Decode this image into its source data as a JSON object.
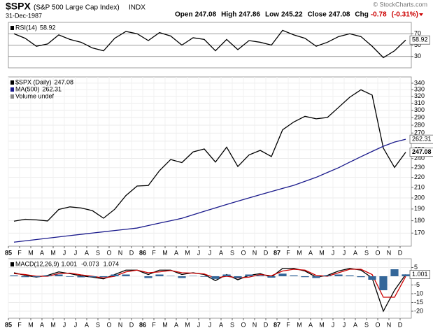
{
  "header": {
    "symbol": "$SPX",
    "name": "(S&P 500 Large Cap Index)",
    "exchange": "INDX",
    "date": "31-Dec-1987",
    "open_label": "Open",
    "open": 247.08,
    "high_label": "High",
    "high": 247.86,
    "low_label": "Low",
    "low": 245.22,
    "close_label": "Close",
    "close": 247.08,
    "chg_label": "Chg",
    "chg": -0.78,
    "chg_pct": "(-0.31%)",
    "credit": "© StockCharts.com"
  },
  "chart_data": [
    {
      "type": "line",
      "ylim": [
        10,
        90
      ],
      "yticks": [
        30,
        50,
        70
      ],
      "grid": true,
      "series": [
        {
          "name": "RSI(14)",
          "color": "#000000",
          "value_box": true,
          "values": [
            70,
            62,
            48,
            52,
            68,
            60,
            55,
            45,
            40,
            62,
            74,
            70,
            58,
            72,
            66,
            50,
            63,
            60,
            40,
            60,
            42,
            58,
            55,
            50,
            76,
            68,
            62,
            48,
            55,
            65,
            70,
            65,
            48,
            28,
            40,
            58.92
          ]
        }
      ]
    },
    {
      "type": "line",
      "log_scale": true,
      "ylim": [
        160,
        350
      ],
      "yticks": [
        170,
        180,
        190,
        200,
        210,
        220,
        230,
        240,
        250,
        260,
        270,
        280,
        290,
        300,
        310,
        320,
        330,
        340
      ],
      "grid": true,
      "categories": [
        "85",
        "F",
        "M",
        "A",
        "M",
        "J",
        "J",
        "A",
        "S",
        "O",
        "N",
        "D",
        "86",
        "F",
        "M",
        "A",
        "M",
        "J",
        "J",
        "A",
        "S",
        "O",
        "N",
        "D",
        "87",
        "F",
        "M",
        "A",
        "M",
        "J",
        "J",
        "A",
        "S",
        "O",
        "N",
        "D"
      ],
      "volume_legend": "Volume undef",
      "series": [
        {
          "name": "$SPX (Daily)",
          "color": "#000000",
          "value_box": true,
          "values": [
            179.6,
            181.2,
            180.7,
            179.8,
            189.6,
            191.9,
            190.9,
            188.6,
            182.1,
            189.8,
            202.2,
            211.3,
            211.8,
            226.9,
            238.9,
            235.5,
            247.4,
            250.8,
            236.1,
            252.9,
            231.3,
            243.98,
            249.2,
            242.2,
            274.1,
            284.2,
            291.7,
            288.4,
            290.1,
            304.0,
            318.7,
            329.8,
            321.8,
            251.8,
            230.3,
            247.08
          ]
        },
        {
          "name": "MA(500)",
          "color": "#1a1a8c",
          "value_box": true,
          "values": [
            163,
            164,
            165,
            166,
            167,
            168,
            169,
            170,
            171,
            172,
            173,
            174,
            176,
            178,
            180,
            182,
            185,
            188,
            191,
            194,
            197,
            200,
            203,
            206,
            209,
            212,
            216,
            220,
            225,
            230,
            236,
            242,
            248,
            254,
            259,
            262.31
          ]
        }
      ]
    },
    {
      "type": "line",
      "ylim": [
        -24,
        10
      ],
      "yticks": [
        5,
        0,
        -5,
        -10,
        -15,
        -20
      ],
      "grid": true,
      "legend_inline": true,
      "categories": [
        "85",
        "F",
        "M",
        "A",
        "M",
        "J",
        "J",
        "A",
        "S",
        "O",
        "N",
        "D",
        "86",
        "F",
        "M",
        "A",
        "M",
        "J",
        "J",
        "A",
        "S",
        "O",
        "N",
        "D",
        "87",
        "F",
        "M",
        "A",
        "M",
        "J",
        "J",
        "A",
        "S",
        "O",
        "N",
        "D"
      ],
      "series": [
        {
          "name": "MACD(12,26,9)",
          "color": "#000000",
          "value_box": true,
          "values": [
            2,
            0.5,
            -0.5,
            0.5,
            2.5,
            1.5,
            0.2,
            -0.5,
            -1.5,
            1,
            3.5,
            3.5,
            1,
            3.5,
            3.5,
            1,
            2,
            1,
            -2.5,
            1,
            -2,
            0.5,
            1.5,
            -0.5,
            4.5,
            4.5,
            3,
            -0.5,
            0.5,
            3,
            4.5,
            3.5,
            -1,
            -20,
            -8,
            1.001
          ]
        },
        {
          "color": "#cc0000",
          "values": [
            1.5,
            1,
            0,
            0,
            1.5,
            1.8,
            0.8,
            0,
            -1,
            0,
            2.5,
            3.5,
            2,
            2.5,
            3.3,
            2,
            1.8,
            1.3,
            -1,
            0,
            -1,
            -0.5,
            1,
            0.3,
            3,
            4,
            3.5,
            0.5,
            0,
            2,
            4,
            4,
            1,
            -12,
            -12,
            -0.073
          ]
        },
        {
          "color": "#336699",
          "kind": "bar",
          "values": [
            0.5,
            -0.5,
            -0.5,
            0.5,
            1,
            -0.3,
            -0.6,
            -0.5,
            -0.5,
            1,
            1,
            0,
            -1,
            1,
            0.2,
            -1,
            0.2,
            -0.3,
            -1.5,
            1,
            -1,
            1,
            0.5,
            -0.8,
            1.5,
            0.5,
            -0.5,
            -1,
            0.5,
            1,
            0.5,
            -0.5,
            -2,
            -8,
            4,
            1.074
          ]
        }
      ]
    }
  ]
}
